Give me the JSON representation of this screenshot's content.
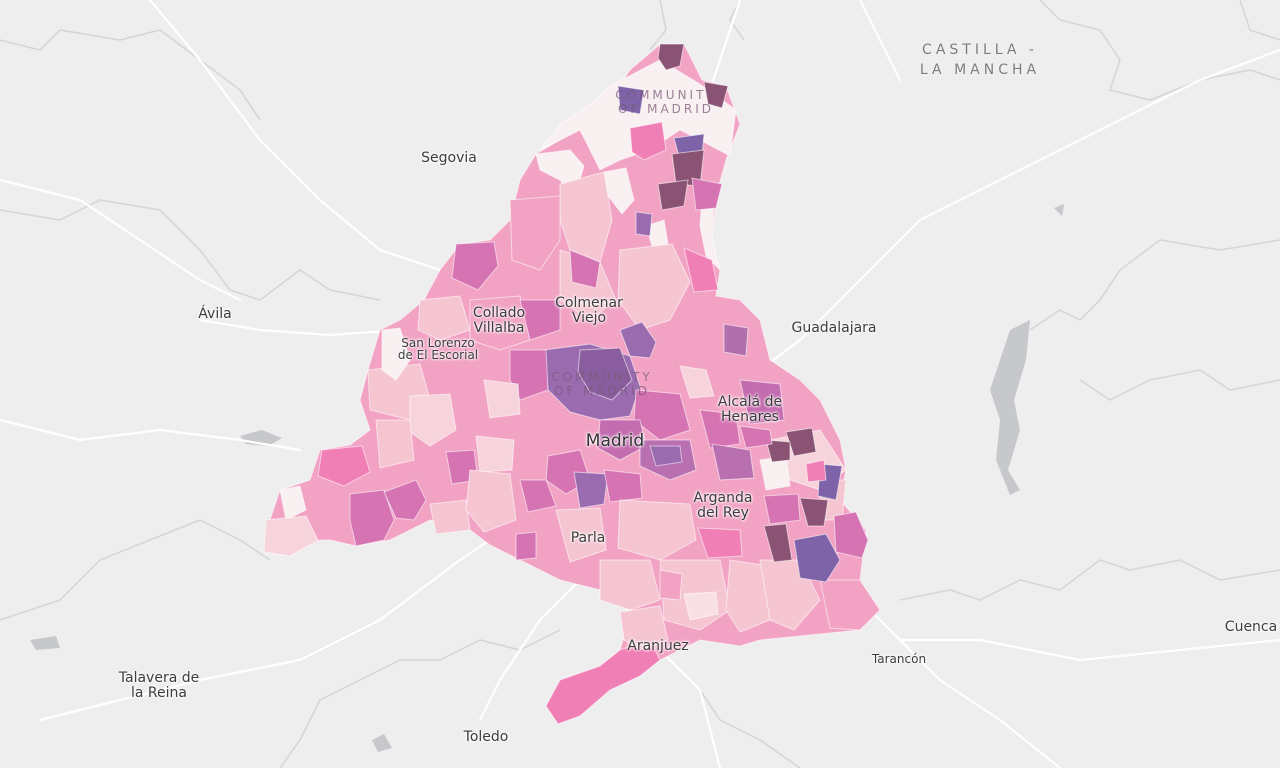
{
  "map": {
    "region_labels": {
      "castilla_la_mancha": [
        "CASTILLA -",
        "LA MANCHA"
      ],
      "community_of_madrid_north": [
        "COMMUNITY",
        "OF MADRID"
      ],
      "community_of_madrid_center": [
        "COMMUNITY",
        "OF MADRID"
      ]
    },
    "cities": {
      "madrid": "Madrid",
      "segovia": "Segovia",
      "avila": "Ávila",
      "guadalajara": "Guadalajara",
      "collado_villalba": [
        "Collado",
        "Villalba"
      ],
      "colmenar_viejo": [
        "Colmenar",
        "Viejo"
      ],
      "san_lorenzo": [
        "San Lorenzo",
        "de El Escorial"
      ],
      "alcala": [
        "Alcalá de",
        "Henares"
      ],
      "arganda": [
        "Arganda",
        "del Rey"
      ],
      "parla": "Parla",
      "aranjuez": "Aranjuez",
      "tarancon": "Tarancón",
      "cuenca": "Cuenca",
      "talavera": [
        "Talavera de",
        "la Reina"
      ],
      "toledo": "Toledo"
    },
    "colors": {
      "background": "#eeeeef",
      "roads": "#ffffff",
      "boundary": "#d8d8da",
      "water": "#c6c8cc",
      "choropleth_lightest": "#f9f0f2",
      "choropleth_light": "#f5c6d2",
      "choropleth_mid": "#f2a3c4",
      "choropleth_strong": "#d673b2",
      "choropleth_purple": "#9b6bb0",
      "choropleth_darkest": "#8a5273"
    }
  }
}
